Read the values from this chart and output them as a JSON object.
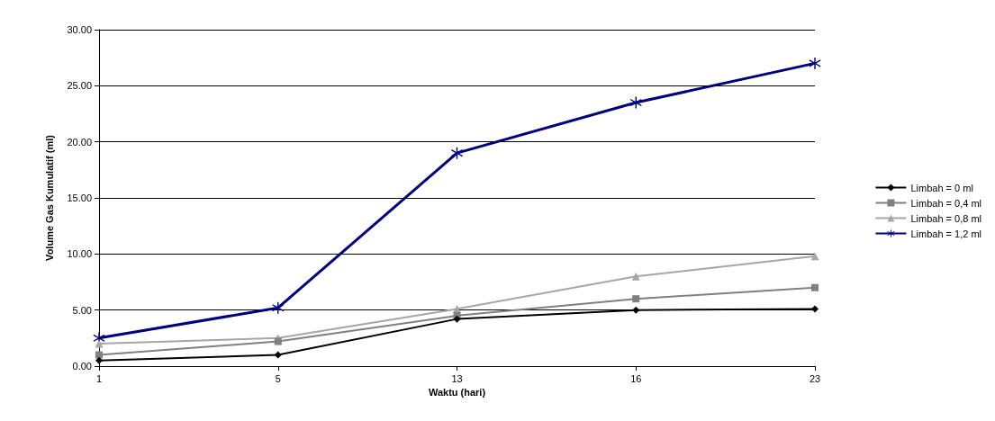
{
  "chart_data": {
    "type": "line",
    "xlabel": "Waktu (hari)",
    "ylabel": "Volume Gas Kumulatif (ml)",
    "categories": [
      "1",
      "5",
      "13",
      "16",
      "23"
    ],
    "series": [
      {
        "name": "Limbah = 0 ml",
        "color": "#000000",
        "marker": "diamond",
        "values": [
          0.5,
          1.0,
          4.2,
          5.0,
          5.1
        ]
      },
      {
        "name": "Limbah = 0,4 ml",
        "color": "#808080",
        "marker": "square",
        "values": [
          1.0,
          2.2,
          4.5,
          6.0,
          7.0
        ]
      },
      {
        "name": "Limbah = 0,8 ml",
        "color": "#a6a6a6",
        "marker": "triangle",
        "values": [
          2.0,
          2.5,
          5.1,
          8.0,
          9.8
        ]
      },
      {
        "name": "Limbah = 1,2 ml",
        "color": "#000080",
        "marker": "star",
        "values": [
          2.5,
          5.2,
          19.0,
          23.5,
          27.0
        ]
      }
    ],
    "ylim": [
      0,
      30
    ],
    "yticks": [
      {
        "value": 0,
        "label": "0.00"
      },
      {
        "value": 5,
        "label": "5.00"
      },
      {
        "value": 10,
        "label": "10.00"
      },
      {
        "value": 15,
        "label": "15.00"
      },
      {
        "value": 20,
        "label": "20.00"
      },
      {
        "value": 25,
        "label": "25.00"
      },
      {
        "value": 30,
        "label": "30.00"
      }
    ],
    "grid": "y",
    "legend": "right"
  }
}
